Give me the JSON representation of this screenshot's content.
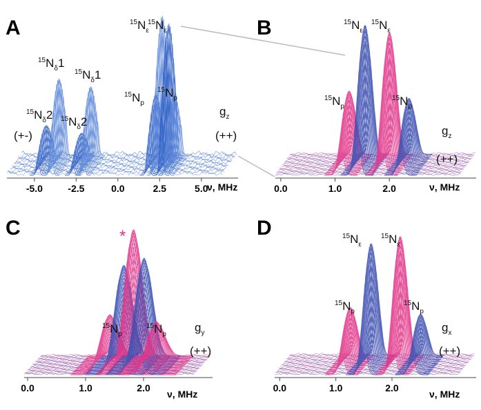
{
  "chart_data": [
    {
      "type": "waterfall",
      "panel": "A",
      "xlabel": "ν, MHz",
      "xlim": [
        -6.65,
        7.2
      ],
      "xticks": [
        {
          "value": -5,
          "label": "-5.0"
        },
        {
          "value": -2.5,
          "label": "-2.5"
        },
        {
          "value": 0,
          "label": "0.0"
        },
        {
          "value": 2.5,
          "label": "2.5"
        },
        {
          "value": 5,
          "label": "5.0"
        }
      ],
      "colors": [
        "#2f5fc4",
        "#5a86d8"
      ],
      "peaks": [
        {
          "x": -4.8,
          "height": 0.25
        },
        {
          "x": -4.0,
          "height": 0.55
        },
        {
          "x": -2.7,
          "height": 0.2
        },
        {
          "x": -2.1,
          "height": 0.5
        },
        {
          "x": 1.8,
          "height": 0.45
        },
        {
          "x": 2.2,
          "height": 0.95
        },
        {
          "x": 2.6,
          "height": 0.9
        },
        {
          "x": 2.9,
          "height": 0.45
        }
      ],
      "annotations": [
        {
          "sup": "15",
          "base": "N",
          "sub": "δ",
          "suffix": "2"
        },
        {
          "sup": "15",
          "base": "N",
          "sub": "δ",
          "suffix": "1"
        },
        {
          "sup": "15",
          "base": "N",
          "sub": "δ",
          "suffix": "2"
        },
        {
          "sup": "15",
          "base": "N",
          "sub": "δ",
          "suffix": "1"
        },
        {
          "sup": "15",
          "base": "N",
          "sub": "ε"
        },
        {
          "sup": "15",
          "base": "N",
          "sub": "ε"
        },
        {
          "sup": "15",
          "base": "N",
          "sub": "p"
        },
        {
          "sup": "15",
          "base": "N",
          "sub": "p"
        },
        {
          "base": "g",
          "sub": "z"
        },
        {
          "base": "(+-)"
        },
        {
          "base": "(++)"
        }
      ]
    },
    {
      "type": "waterfall",
      "panel": "B",
      "xlabel": "ν, MHz",
      "xlim": [
        -0.1,
        3.6
      ],
      "xticks": [
        {
          "value": 0,
          "label": "0.0"
        },
        {
          "value": 1,
          "label": "1.0"
        },
        {
          "value": 2,
          "label": "2.0"
        }
      ],
      "colors": [
        "#e0358a",
        "#3c4fb0"
      ],
      "peaks": [
        {
          "x": 1.1,
          "height": 0.5
        },
        {
          "x": 1.4,
          "height": 0.95
        },
        {
          "x": 1.85,
          "height": 0.9
        },
        {
          "x": 2.2,
          "height": 0.45
        }
      ],
      "annotations": [
        {
          "sup": "15",
          "base": "N",
          "sub": "ε"
        },
        {
          "sup": "15",
          "base": "N",
          "sub": "ε"
        },
        {
          "sup": "15",
          "base": "N",
          "sub": "p"
        },
        {
          "sup": "15",
          "base": "N",
          "sub": "p"
        },
        {
          "base": "g",
          "sub": "z"
        },
        {
          "base": "(++)"
        }
      ]
    },
    {
      "type": "waterfall",
      "panel": "C",
      "xlabel": "ν, MHz",
      "xlim": [
        -0.06,
        3.19
      ],
      "xticks": [
        {
          "value": 0,
          "label": "0.0"
        },
        {
          "value": 1,
          "label": "1.0"
        },
        {
          "value": 2,
          "label": "2.0"
        }
      ],
      "colors": [
        "#e0358a",
        "#3c4fb0"
      ],
      "peaks": [
        {
          "x": 1.25,
          "height": 0.35
        },
        {
          "x": 1.5,
          "height": 0.7
        },
        {
          "x": 1.67,
          "height": 0.95
        },
        {
          "x": 1.85,
          "height": 0.75
        },
        {
          "x": 2.05,
          "height": 0.3
        }
      ],
      "annotations": [
        {
          "base": "*",
          "color": "#e0358a"
        },
        {
          "sup": "15",
          "base": "N",
          "sub": "p"
        },
        {
          "sup": "15",
          "base": "N",
          "sub": "p"
        },
        {
          "base": "g",
          "sub": "y"
        },
        {
          "base": "(++)"
        }
      ]
    },
    {
      "type": "waterfall",
      "panel": "D",
      "xlabel": "ν, MHz",
      "xlim": [
        -0.09,
        3.5
      ],
      "xticks": [
        {
          "value": 0,
          "label": "0.0"
        },
        {
          "value": 1,
          "label": "1.0"
        },
        {
          "value": 2,
          "label": "2.0"
        }
      ],
      "colors": [
        "#e0358a",
        "#3c4fb0"
      ],
      "peaks": [
        {
          "x": 1.1,
          "height": 0.4
        },
        {
          "x": 1.48,
          "height": 0.85
        },
        {
          "x": 2.0,
          "height": 0.9
        },
        {
          "x": 2.35,
          "height": 0.35
        }
      ],
      "annotations": [
        {
          "sup": "15",
          "base": "N",
          "sub": "ε"
        },
        {
          "sup": "15",
          "base": "N",
          "sub": "ε"
        },
        {
          "sup": "15",
          "base": "N",
          "sub": "p"
        },
        {
          "sup": "15",
          "base": "N",
          "sub": "p"
        },
        {
          "base": "g",
          "sub": "x"
        },
        {
          "base": "(++)"
        }
      ]
    }
  ]
}
